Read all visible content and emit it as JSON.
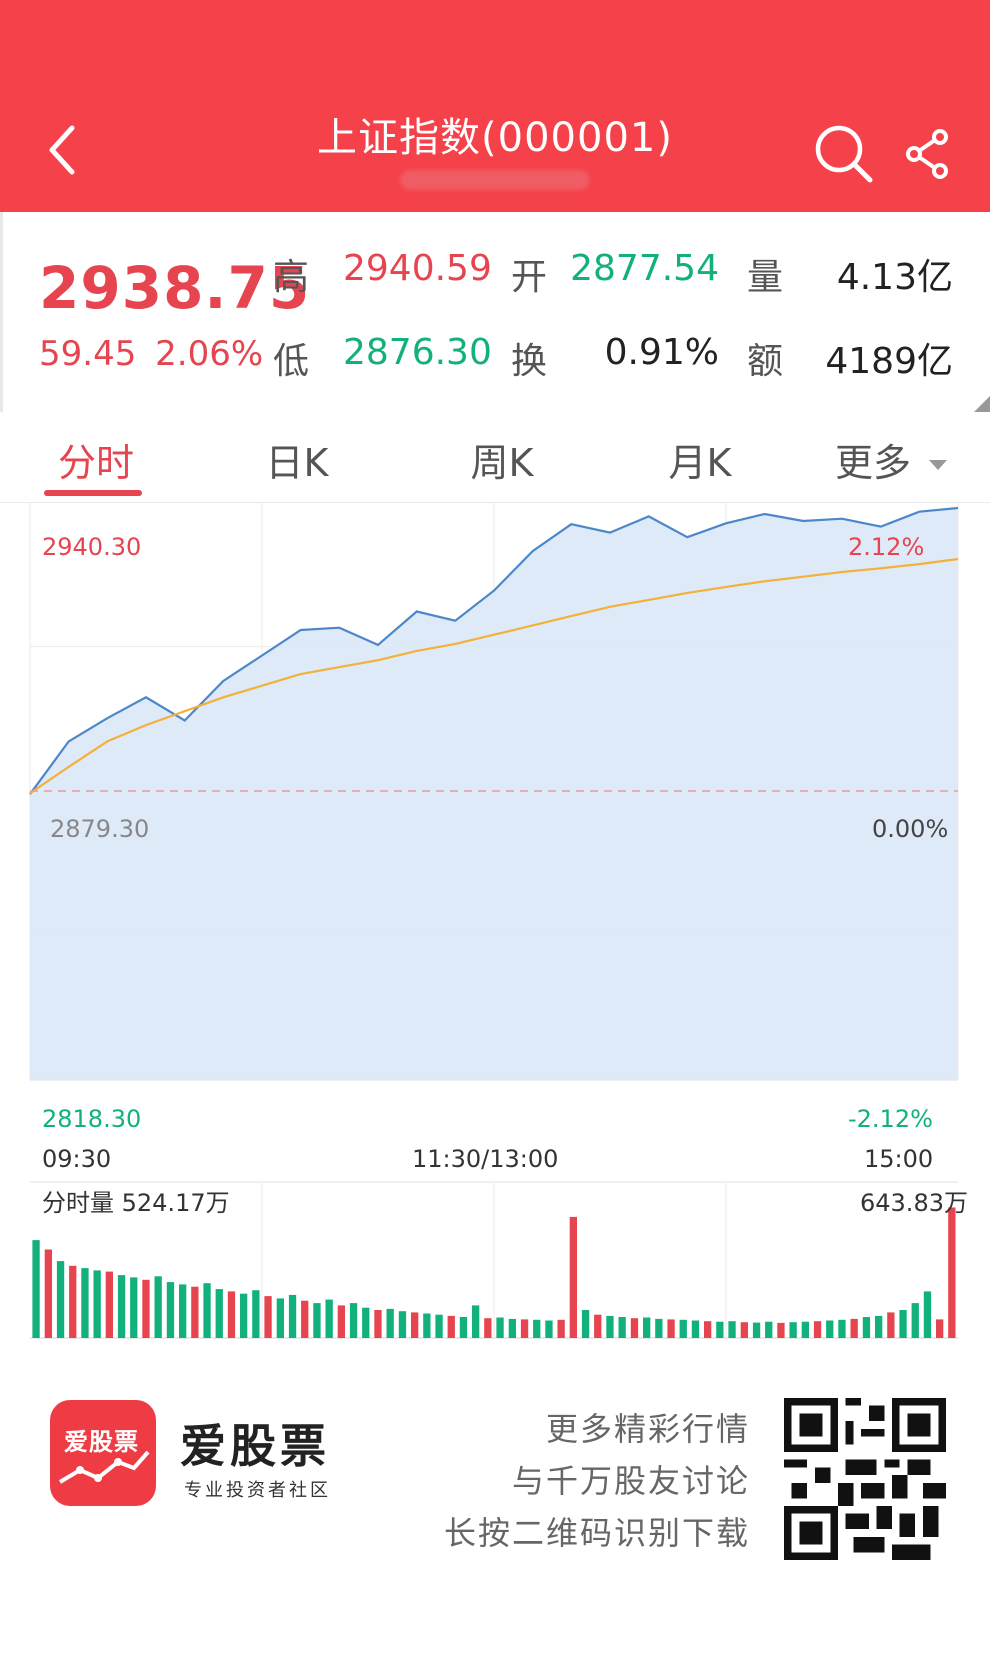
{
  "header": {
    "title": "上证指数(000001)",
    "back_icon": "chevron-left-icon",
    "search_icon": "search-icon",
    "share_icon": "share-icon"
  },
  "quote": {
    "price": "2938.75",
    "change": "59.45",
    "change_pct": "2.06%",
    "high_label": "高",
    "high": "2940.59",
    "open_label": "开",
    "open": "2877.54",
    "volume_label": "量",
    "volume": "4.13亿",
    "low_label": "低",
    "low": "2876.30",
    "turnover_label": "换",
    "turnover": "0.91%",
    "amount_label": "额",
    "amount": "4189亿"
  },
  "tabs": [
    {
      "label": "分时",
      "active": true
    },
    {
      "label": "日K",
      "active": false
    },
    {
      "label": "周K",
      "active": false
    },
    {
      "label": "月K",
      "active": false
    },
    {
      "label": "更多",
      "active": false
    }
  ],
  "chart_data": {
    "type": "line",
    "price_max_label": "2940.30",
    "price_prev_close_label": "2879.30",
    "price_min_label": "2818.30",
    "pct_max_label": "2.12%",
    "pct_zero_label": "0.00%",
    "pct_min_label": "-2.12%",
    "time_labels": [
      "09:30",
      "11:30/13:00",
      "15:00"
    ],
    "ylim": [
      2818.3,
      2940.3
    ],
    "prev_close": 2879.3,
    "x_minutes": [
      0,
      10,
      20,
      30,
      40,
      50,
      60,
      70,
      80,
      90,
      100,
      110,
      120,
      130,
      140,
      150,
      160,
      170,
      180,
      190,
      200,
      210,
      220,
      230,
      240
    ],
    "series": [
      {
        "name": "price",
        "color": "#4b87c9",
        "values": [
          2878.6,
          2890.0,
          2895.0,
          2899.5,
          2894.5,
          2903.0,
          2908.5,
          2914.0,
          2914.5,
          2910.8,
          2918.0,
          2916.0,
          2922.5,
          2931.0,
          2936.8,
          2935.0,
          2938.5,
          2934.0,
          2937.0,
          2939.0,
          2937.5,
          2938.0,
          2936.3,
          2939.5,
          2940.3
        ]
      },
      {
        "name": "average",
        "color": "#f2b13a",
        "values": [
          2878.8,
          2884.5,
          2890.0,
          2893.5,
          2896.5,
          2899.5,
          2902.0,
          2904.5,
          2906.0,
          2907.5,
          2909.5,
          2911.0,
          2913.0,
          2915.0,
          2917.0,
          2919.0,
          2920.5,
          2922.0,
          2923.3,
          2924.5,
          2925.5,
          2926.5,
          2927.3,
          2928.2,
          2929.3
        ]
      }
    ]
  },
  "volume_data": {
    "label": "分时量 524.17万",
    "max_label": "643.83万",
    "max": 643.83,
    "bars": [
      {
        "v": 420,
        "up": false
      },
      {
        "v": 380,
        "up": true
      },
      {
        "v": 330,
        "up": false
      },
      {
        "v": 310,
        "up": true
      },
      {
        "v": 300,
        "up": false
      },
      {
        "v": 290,
        "up": false
      },
      {
        "v": 285,
        "up": true
      },
      {
        "v": 270,
        "up": false
      },
      {
        "v": 260,
        "up": false
      },
      {
        "v": 250,
        "up": true
      },
      {
        "v": 265,
        "up": false
      },
      {
        "v": 240,
        "up": false
      },
      {
        "v": 230,
        "up": false
      },
      {
        "v": 220,
        "up": true
      },
      {
        "v": 235,
        "up": false
      },
      {
        "v": 210,
        "up": false
      },
      {
        "v": 200,
        "up": true
      },
      {
        "v": 190,
        "up": false
      },
      {
        "v": 205,
        "up": false
      },
      {
        "v": 180,
        "up": true
      },
      {
        "v": 170,
        "up": false
      },
      {
        "v": 185,
        "up": false
      },
      {
        "v": 160,
        "up": true
      },
      {
        "v": 150,
        "up": false
      },
      {
        "v": 165,
        "up": false
      },
      {
        "v": 140,
        "up": true
      },
      {
        "v": 150,
        "up": false
      },
      {
        "v": 130,
        "up": false
      },
      {
        "v": 120,
        "up": true
      },
      {
        "v": 125,
        "up": false
      },
      {
        "v": 115,
        "up": false
      },
      {
        "v": 110,
        "up": true
      },
      {
        "v": 105,
        "up": false
      },
      {
        "v": 100,
        "up": false
      },
      {
        "v": 95,
        "up": true
      },
      {
        "v": 90,
        "up": false
      },
      {
        "v": 140,
        "up": false
      },
      {
        "v": 85,
        "up": true
      },
      {
        "v": 88,
        "up": false
      },
      {
        "v": 82,
        "up": false
      },
      {
        "v": 80,
        "up": true
      },
      {
        "v": 78,
        "up": false
      },
      {
        "v": 75,
        "up": false
      },
      {
        "v": 78,
        "up": true
      },
      {
        "v": 520,
        "up": true
      },
      {
        "v": 120,
        "up": false
      },
      {
        "v": 100,
        "up": true
      },
      {
        "v": 95,
        "up": false
      },
      {
        "v": 90,
        "up": false
      },
      {
        "v": 85,
        "up": true
      },
      {
        "v": 88,
        "up": false
      },
      {
        "v": 82,
        "up": false
      },
      {
        "v": 80,
        "up": true
      },
      {
        "v": 78,
        "up": false
      },
      {
        "v": 75,
        "up": false
      },
      {
        "v": 72,
        "up": true
      },
      {
        "v": 70,
        "up": false
      },
      {
        "v": 72,
        "up": false
      },
      {
        "v": 68,
        "up": true
      },
      {
        "v": 66,
        "up": false
      },
      {
        "v": 70,
        "up": false
      },
      {
        "v": 65,
        "up": true
      },
      {
        "v": 68,
        "up": false
      },
      {
        "v": 70,
        "up": false
      },
      {
        "v": 72,
        "up": true
      },
      {
        "v": 75,
        "up": false
      },
      {
        "v": 78,
        "up": false
      },
      {
        "v": 82,
        "up": true
      },
      {
        "v": 90,
        "up": false
      },
      {
        "v": 95,
        "up": false
      },
      {
        "v": 110,
        "up": true
      },
      {
        "v": 120,
        "up": false
      },
      {
        "v": 150,
        "up": false
      },
      {
        "v": 200,
        "up": false
      },
      {
        "v": 80,
        "up": true
      },
      {
        "v": 560,
        "up": true
      }
    ]
  },
  "footer": {
    "logo_text": "爱股票",
    "brand": "爱股票",
    "slogan": "专业投资者社区",
    "promo_line1": "更多精彩行情",
    "promo_line2": "与千万股友讨论",
    "promo_line3": "长按二维码识别下载",
    "qr_icon": "qr-code-icon",
    "colors": {
      "brand_red": "#ef3b43",
      "up_red": "#e6454f",
      "down_green": "#12b07c"
    }
  }
}
